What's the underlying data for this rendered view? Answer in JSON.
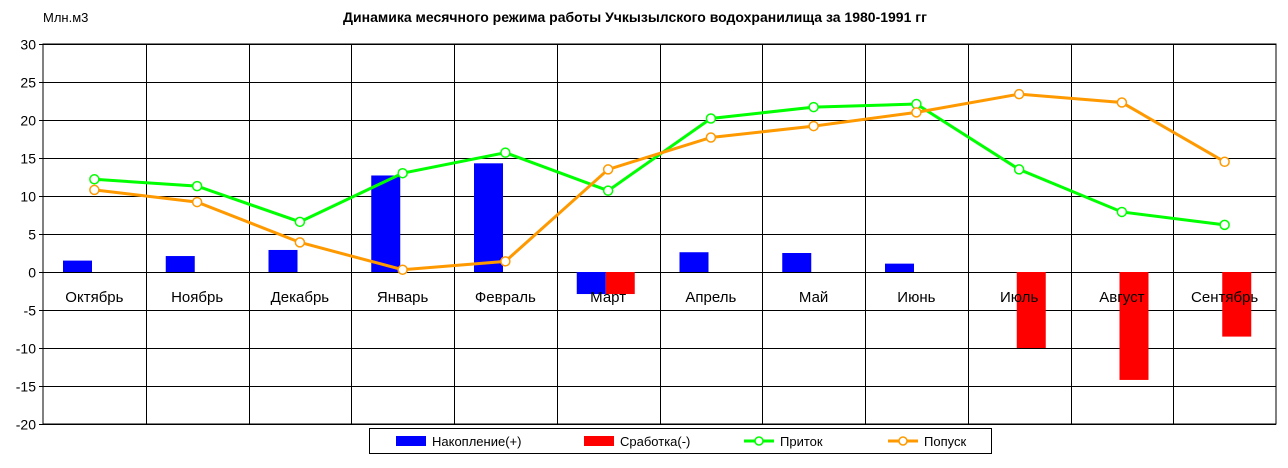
{
  "chart_data": {
    "type": "bar",
    "title": "Динамика месячного режима работы Учкызылского водохранилища за 1980-1991 гг",
    "ylabel": "Млн.м3",
    "xlabel": "",
    "ylim": [
      -20,
      30
    ],
    "ystep": 5,
    "yticks": [
      "30",
      "25",
      "20",
      "15",
      "10",
      "5",
      "0",
      "-5",
      "-10",
      "-15",
      "-20"
    ],
    "grid": true,
    "legend_position": "bottom",
    "categories": [
      "Октябрь",
      "Ноябрь",
      "Декабрь",
      "Январь",
      "Февраль",
      "Март",
      "Апрель",
      "Май",
      "Июнь",
      "Июль",
      "Август",
      "Сентябрь"
    ],
    "series": [
      {
        "name": "Накопление(+)",
        "kind": "bar",
        "color": "#0000ff",
        "values": [
          1.5,
          2.1,
          2.9,
          12.7,
          14.3,
          -2.9,
          2.6,
          2.5,
          1.1,
          0,
          0,
          0
        ]
      },
      {
        "name": "Сработка(-)",
        "kind": "bar",
        "color": "#ff0000",
        "values": [
          0,
          0,
          0,
          0,
          0,
          -2.9,
          0,
          0,
          0,
          -10.0,
          -14.2,
          -8.5
        ]
      },
      {
        "name": "Приток",
        "kind": "line",
        "color": "#00ff00",
        "values": [
          12.2,
          11.3,
          6.6,
          13.0,
          15.7,
          10.7,
          20.2,
          21.7,
          22.1,
          13.5,
          7.9,
          6.2
        ]
      },
      {
        "name": "Попуск",
        "kind": "line",
        "color": "#ff9900",
        "values": [
          10.8,
          9.2,
          3.9,
          0.3,
          1.4,
          13.5,
          17.7,
          19.2,
          21.0,
          23.4,
          22.3,
          14.5
        ]
      }
    ]
  }
}
